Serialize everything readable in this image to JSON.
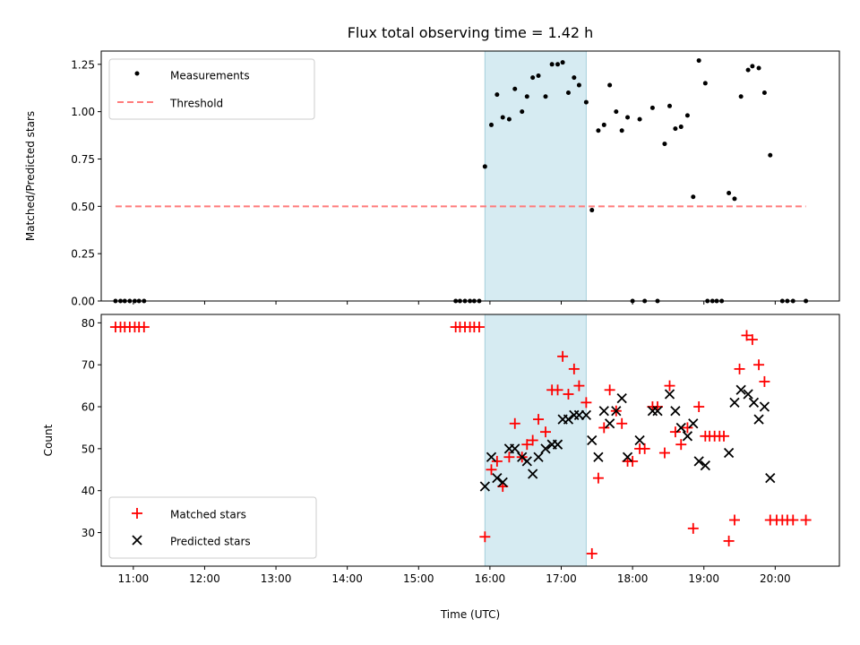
{
  "chart_data": [
    {
      "type": "scatter",
      "panel": "top",
      "title": "Flux total observing time = 1.42 h",
      "xlabel": "",
      "ylabel": "Matched/Predicted stars",
      "xlim": [
        10.55,
        20.9
      ],
      "ylim": [
        0.0,
        1.32
      ],
      "yticks": [
        0.0,
        0.25,
        0.5,
        0.75,
        1.0,
        1.25
      ],
      "ytick_labels": [
        "0.00",
        "0.25",
        "0.50",
        "0.75",
        "1.00",
        "1.25"
      ],
      "highlight_span": [
        15.93,
        17.35
      ],
      "legend": {
        "placement": "upper-left",
        "entries": [
          "Measurements",
          "Threshold"
        ]
      },
      "series": [
        {
          "name": "Measurements",
          "marker": "dot",
          "color": "#000000",
          "points": [
            [
              10.75,
              0
            ],
            [
              10.82,
              0
            ],
            [
              10.88,
              0
            ],
            [
              10.95,
              0
            ],
            [
              11.02,
              0
            ],
            [
              11.08,
              0
            ],
            [
              11.15,
              0
            ],
            [
              15.52,
              0
            ],
            [
              15.58,
              0
            ],
            [
              15.65,
              0
            ],
            [
              15.72,
              0
            ],
            [
              15.78,
              0
            ],
            [
              15.85,
              0
            ],
            [
              15.93,
              0.71
            ],
            [
              16.02,
              0.93
            ],
            [
              16.1,
              1.09
            ],
            [
              16.18,
              0.97
            ],
            [
              16.27,
              0.96
            ],
            [
              16.35,
              1.12
            ],
            [
              16.45,
              1.0
            ],
            [
              16.52,
              1.08
            ],
            [
              16.6,
              1.18
            ],
            [
              16.68,
              1.19
            ],
            [
              16.78,
              1.08
            ],
            [
              16.87,
              1.25
            ],
            [
              16.95,
              1.25
            ],
            [
              17.02,
              1.26
            ],
            [
              17.1,
              1.1
            ],
            [
              17.18,
              1.18
            ],
            [
              17.25,
              1.14
            ],
            [
              17.35,
              1.05
            ],
            [
              17.43,
              0.48
            ],
            [
              17.52,
              0.9
            ],
            [
              17.6,
              0.93
            ],
            [
              17.68,
              1.14
            ],
            [
              17.77,
              1.0
            ],
            [
              17.85,
              0.9
            ],
            [
              17.93,
              0.97
            ],
            [
              18.1,
              0.96
            ],
            [
              18.28,
              1.02
            ],
            [
              18.45,
              0.83
            ],
            [
              18.52,
              1.03
            ],
            [
              18.6,
              0.91
            ],
            [
              18.68,
              0.92
            ],
            [
              18.77,
              0.98
            ],
            [
              18.85,
              0.55
            ],
            [
              18.93,
              1.27
            ],
            [
              19.02,
              1.15
            ],
            [
              19.35,
              0.57
            ],
            [
              19.43,
              0.54
            ],
            [
              19.52,
              1.08
            ],
            [
              19.62,
              1.22
            ],
            [
              19.68,
              1.24
            ],
            [
              19.77,
              1.23
            ],
            [
              19.85,
              1.1
            ],
            [
              19.93,
              0.77
            ],
            [
              18.0,
              0
            ],
            [
              18.17,
              0
            ],
            [
              18.35,
              0
            ],
            [
              19.05,
              0
            ],
            [
              19.12,
              0
            ],
            [
              19.18,
              0
            ],
            [
              19.25,
              0
            ],
            [
              20.1,
              0
            ],
            [
              20.17,
              0
            ],
            [
              20.25,
              0
            ],
            [
              20.43,
              0
            ]
          ]
        },
        {
          "name": "Threshold",
          "marker": "dashed-line",
          "color": "#ff7b7b",
          "points": [
            [
              10.75,
              0.5
            ],
            [
              20.43,
              0.5
            ]
          ]
        }
      ]
    },
    {
      "type": "scatter",
      "panel": "bottom",
      "xlabel": "Time (UTC)",
      "ylabel": "Count",
      "xlim": [
        10.55,
        20.9
      ],
      "ylim": [
        22,
        82
      ],
      "yticks": [
        30,
        40,
        50,
        60,
        70,
        80
      ],
      "ytick_labels": [
        "30",
        "40",
        "50",
        "60",
        "70",
        "80"
      ],
      "xticks": [
        11,
        12,
        13,
        14,
        15,
        16,
        17,
        18,
        19,
        20
      ],
      "xtick_labels": [
        "11:00",
        "12:00",
        "13:00",
        "14:00",
        "15:00",
        "16:00",
        "17:00",
        "18:00",
        "19:00",
        "20:00"
      ],
      "highlight_span": [
        15.93,
        17.35
      ],
      "legend": {
        "placement": "lower-left",
        "entries": [
          "Matched stars",
          "Predicted stars"
        ]
      },
      "series": [
        {
          "name": "Matched stars",
          "marker": "plus",
          "color": "#ff0000",
          "points": [
            [
              10.75,
              79
            ],
            [
              10.82,
              79
            ],
            [
              10.88,
              79
            ],
            [
              10.95,
              79
            ],
            [
              11.02,
              79
            ],
            [
              11.08,
              79
            ],
            [
              11.15,
              79
            ],
            [
              15.52,
              79
            ],
            [
              15.58,
              79
            ],
            [
              15.65,
              79
            ],
            [
              15.72,
              79
            ],
            [
              15.78,
              79
            ],
            [
              15.85,
              79
            ],
            [
              15.93,
              29
            ],
            [
              16.02,
              45
            ],
            [
              16.1,
              47
            ],
            [
              16.18,
              41
            ],
            [
              16.27,
              48
            ],
            [
              16.35,
              56
            ],
            [
              16.45,
              48
            ],
            [
              16.52,
              51
            ],
            [
              16.6,
              52
            ],
            [
              16.68,
              57
            ],
            [
              16.78,
              54
            ],
            [
              16.87,
              64
            ],
            [
              16.95,
              64
            ],
            [
              17.02,
              72
            ],
            [
              17.1,
              63
            ],
            [
              17.18,
              69
            ],
            [
              17.25,
              65
            ],
            [
              17.35,
              61
            ],
            [
              17.43,
              25
            ],
            [
              17.52,
              43
            ],
            [
              17.6,
              55
            ],
            [
              17.68,
              64
            ],
            [
              17.77,
              59
            ],
            [
              17.85,
              56
            ],
            [
              17.93,
              47
            ],
            [
              18.0,
              47
            ],
            [
              18.1,
              50
            ],
            [
              18.17,
              50
            ],
            [
              18.28,
              60
            ],
            [
              18.35,
              60
            ],
            [
              18.45,
              49
            ],
            [
              18.52,
              65
            ],
            [
              18.6,
              54
            ],
            [
              18.68,
              51
            ],
            [
              18.77,
              55
            ],
            [
              18.85,
              31
            ],
            [
              18.93,
              60
            ],
            [
              19.02,
              53
            ],
            [
              19.08,
              53
            ],
            [
              19.15,
              53
            ],
            [
              19.22,
              53
            ],
            [
              19.28,
              53
            ],
            [
              19.35,
              28
            ],
            [
              19.43,
              33
            ],
            [
              19.5,
              69
            ],
            [
              19.6,
              77
            ],
            [
              19.68,
              76
            ],
            [
              19.77,
              70
            ],
            [
              19.85,
              66
            ],
            [
              19.93,
              33
            ],
            [
              20.02,
              33
            ],
            [
              20.1,
              33
            ],
            [
              20.17,
              33
            ],
            [
              20.25,
              33
            ],
            [
              20.43,
              33
            ]
          ]
        },
        {
          "name": "Predicted stars",
          "marker": "x",
          "color": "#000000",
          "points": [
            [
              15.93,
              41
            ],
            [
              16.02,
              48
            ],
            [
              16.1,
              43
            ],
            [
              16.18,
              42
            ],
            [
              16.27,
              50
            ],
            [
              16.35,
              50
            ],
            [
              16.45,
              48
            ],
            [
              16.52,
              47
            ],
            [
              16.6,
              44
            ],
            [
              16.68,
              48
            ],
            [
              16.78,
              50
            ],
            [
              16.87,
              51
            ],
            [
              16.95,
              51
            ],
            [
              17.02,
              57
            ],
            [
              17.1,
              57
            ],
            [
              17.18,
              58
            ],
            [
              17.25,
              58
            ],
            [
              17.35,
              58
            ],
            [
              17.43,
              52
            ],
            [
              17.52,
              48
            ],
            [
              17.6,
              59
            ],
            [
              17.68,
              56
            ],
            [
              17.77,
              59
            ],
            [
              17.85,
              62
            ],
            [
              17.93,
              48
            ],
            [
              18.1,
              52
            ],
            [
              18.28,
              59
            ],
            [
              18.35,
              59
            ],
            [
              18.52,
              63
            ],
            [
              18.6,
              59
            ],
            [
              18.68,
              55
            ],
            [
              18.77,
              53
            ],
            [
              18.85,
              56
            ],
            [
              18.93,
              47
            ],
            [
              19.02,
              46
            ],
            [
              19.35,
              49
            ],
            [
              19.43,
              61
            ],
            [
              19.52,
              64
            ],
            [
              19.62,
              63
            ],
            [
              19.7,
              61
            ],
            [
              19.77,
              57
            ],
            [
              19.85,
              60
            ],
            [
              19.93,
              43
            ]
          ]
        }
      ]
    }
  ]
}
